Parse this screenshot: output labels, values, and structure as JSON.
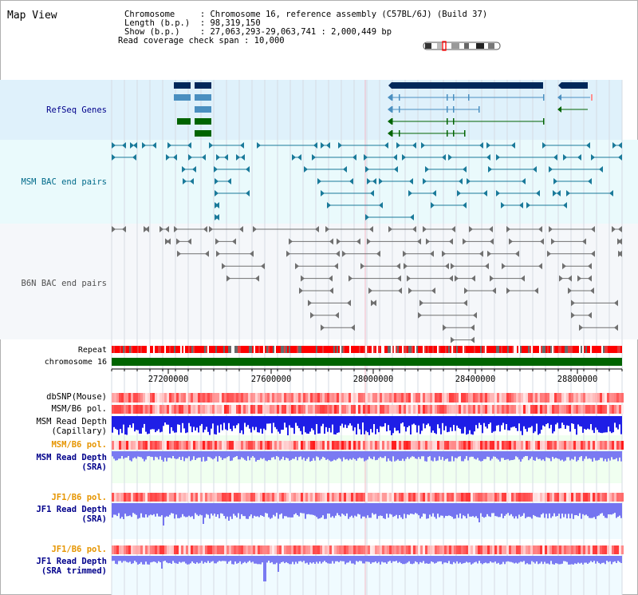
{
  "header": {
    "title": "Map View",
    "info_lines": [
      "Chromosome     : Chromosome 16, reference assembly (C57BL/6J) (Build 37)",
      "Length (b.p.)  : 98,319,150",
      "Show (b.p.)    : 27,063,293-29,063,741 : 2,000,449 bp",
      "Read coverage check span : 10,000"
    ]
  },
  "tracks": {
    "refseq": {
      "label": "RefSeq Genes"
    },
    "msm_bac": {
      "label": "MSM BAC end pairs"
    },
    "b6n_bac": {
      "label": "B6N BAC end pairs"
    },
    "repeat": {
      "label": "Repeat"
    },
    "chromosome": {
      "label": "chromosome 16"
    },
    "dbsnp": {
      "label": "dbSNP(Mouse)"
    },
    "msm_b6_pol_1": {
      "label": "MSM/B6 pol."
    },
    "msm_depth_cap": {
      "label_1": "MSM Read Depth",
      "label_2": "(Capillary)"
    },
    "msm_b6_pol_2": {
      "label": "MSM/B6 pol."
    },
    "msm_depth_sra": {
      "label_1": "MSM Read Depth",
      "label_2": "(SRA)"
    },
    "jf1_b6_pol_1": {
      "label": "JF1/B6 pol."
    },
    "jf1_depth_sra": {
      "label_1": "JF1 Read Depth",
      "label_2": "(SRA)"
    },
    "jf1_b6_pol_2": {
      "label": "JF1/B6 pol."
    },
    "jf1_depth_trim": {
      "label_1": "JF1 Read Depth",
      "label_2": "(SRA trimmed)"
    }
  },
  "axis": {
    "ticks": [
      "27200000",
      "27600000",
      "28000000",
      "28400000",
      "28800000"
    ]
  },
  "colors": {
    "refseq_dark": "#00285a",
    "refseq_blue": "#4a8fc0",
    "refseq_green": "#006400",
    "msm_bac": "#1a7a9a",
    "b6n_bac": "#707070",
    "repeat_red": "#ff0000",
    "chromosome_green": "#006400",
    "depth_blue": "#1e1ee6",
    "sra_blue": "#6b6bf0",
    "label_navy": "#00008b",
    "label_orange": "#e69500"
  }
}
